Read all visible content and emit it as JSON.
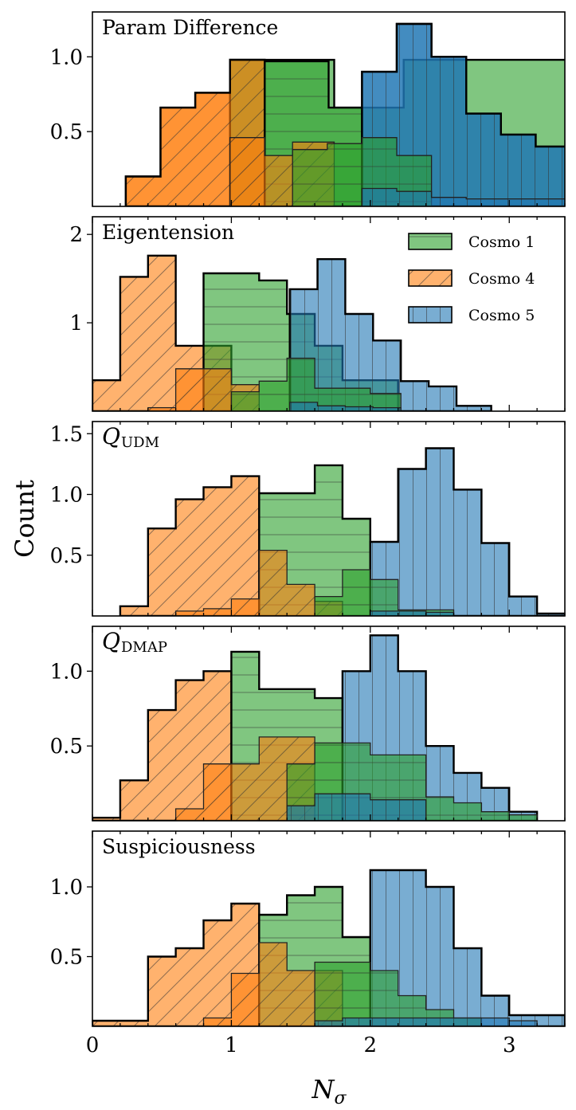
{
  "chart_data": {
    "type": "bar",
    "histtype": "step-filled",
    "xlabel": "N_σ",
    "xlabel_main": "N",
    "xlabel_sub": "σ",
    "ylabel": "Count",
    "xlim": [
      0,
      3.4
    ],
    "xticks": [
      0,
      1,
      2,
      3
    ],
    "xtick_labels": [
      "0",
      "1",
      "2",
      "3"
    ],
    "colors": {
      "Cosmo 1": "#2ca02c",
      "Cosmo 4": "#ff7f0e",
      "Cosmo 5": "#1f77b4"
    },
    "legend": {
      "placement": "top-right of panel 2",
      "entries": [
        "Cosmo 1",
        "Cosmo 4",
        "Cosmo 5"
      ]
    },
    "panels": [
      {
        "title": "Param Difference",
        "title_main": "Param Difference",
        "title_sub": "",
        "ylim": [
          0,
          1.3
        ],
        "yticks": [
          0.5,
          1.0
        ],
        "ytick_labels": [
          "0.5",
          "1.0"
        ],
        "series": [
          {
            "name": "Cosmo 4",
            "role": "outline",
            "edges": [
              0.24,
              0.49,
              0.74,
              0.99,
              1.24
            ],
            "counts": [
              0.2,
              0.66,
              0.76,
              0.98
            ]
          },
          {
            "name": "Cosmo 1",
            "role": "outline",
            "edges": [
              0.99,
              1.24,
              1.49,
              1.74,
              1.99,
              2.24,
              2.49,
              2.74,
              2.99,
              3.24,
              3.49
            ],
            "counts": [
              0.98,
              0.98,
              0.98,
              0.66,
              0.66,
              0.98,
              0.98,
              0.98,
              0.98,
              0.98
            ]
          },
          {
            "name": "Cosmo 5",
            "role": "outline",
            "edges": [
              1.94,
              2.19,
              2.44,
              2.69,
              2.94,
              3.19,
              3.44
            ],
            "counts": [
              0.9,
              1.22,
              1.0,
              0.62,
              0.48,
              0.4
            ]
          },
          {
            "name": "Cosmo 4",
            "role": "fill",
            "edges": [
              0.24,
              0.49,
              0.74,
              0.99,
              1.24
            ],
            "counts": [
              0.2,
              0.66,
              0.76,
              0.98
            ]
          },
          {
            "name": "Cosmo 1",
            "role": "fill",
            "edges": [
              1.24,
              1.7,
              1.94
            ],
            "counts": [
              0.97,
              0.66
            ]
          },
          {
            "name": "Cosmo 5",
            "role": "fill",
            "edges": [
              1.94,
              2.19,
              2.44,
              2.69,
              2.94,
              3.19,
              3.44
            ],
            "counts": [
              0.9,
              1.22,
              1.0,
              0.62,
              0.48,
              0.4
            ]
          },
          {
            "name": "Cosmo 4",
            "role": "test",
            "edges": [
              0.99,
              1.24,
              1.44,
              1.74
            ],
            "counts": [
              0.46,
              0.34,
              0.43
            ]
          },
          {
            "name": "Cosmo 1",
            "role": "test",
            "edges": [
              1.44,
              1.69,
              1.94,
              2.19,
              2.44
            ],
            "counts": [
              0.38,
              0.42,
              0.46,
              0.34
            ]
          },
          {
            "name": "Cosmo 5",
            "role": "test",
            "edges": [
              1.94,
              2.19,
              2.44,
              2.69,
              2.94,
              3.19,
              3.44
            ],
            "counts": [
              0.12,
              0.1,
              0.06,
              0.05,
              0.05,
              0.05
            ]
          }
        ]
      },
      {
        "title": "Eigentension",
        "title_main": "Eigentension",
        "title_sub": "",
        "ylim": [
          0,
          2.2
        ],
        "yticks": [
          1,
          2
        ],
        "ytick_labels": [
          "1",
          "2"
        ],
        "series": [
          {
            "name": "Cosmo 4",
            "role": "fill",
            "edges": [
              0.0,
              0.2,
              0.4,
              0.6,
              0.8,
              1.0
            ],
            "counts": [
              0.35,
              1.52,
              1.76,
              0.74,
              0.74
            ]
          },
          {
            "name": "Cosmo 1",
            "role": "fill",
            "edges": [
              0.8,
              1.2,
              1.4,
              1.6,
              1.8,
              2.2
            ],
            "counts": [
              1.56,
              1.48,
              1.1,
              0.74,
              0.35
            ]
          },
          {
            "name": "Cosmo 5",
            "role": "fill",
            "edges": [
              1.42,
              1.62,
              1.82,
              2.02,
              2.22,
              2.42,
              2.62,
              2.87
            ],
            "counts": [
              1.38,
              1.72,
              1.1,
              0.8,
              0.34,
              0.28,
              0.06
            ]
          },
          {
            "name": "Cosmo 4",
            "role": "test",
            "edges": [
              0.4,
              0.6,
              0.8,
              1.0,
              1.2
            ],
            "counts": [
              0.04,
              0.48,
              0.48,
              0.3
            ]
          },
          {
            "name": "Cosmo 1",
            "role": "test",
            "edges": [
              1.0,
              1.2,
              1.4,
              1.6,
              1.8,
              2.0,
              2.22
            ],
            "counts": [
              0.22,
              0.34,
              0.6,
              0.26,
              0.26,
              0.2
            ]
          },
          {
            "name": "Cosmo 5",
            "role": "test",
            "edges": [
              1.42,
              1.62,
              1.82,
              2.02,
              2.22
            ],
            "counts": [
              0.1,
              0.06,
              0.05,
              0.04
            ]
          }
        ]
      },
      {
        "title": "Q_UDM",
        "title_main": "Q",
        "title_sub": "UDM",
        "ylim": [
          0,
          1.6
        ],
        "yticks": [
          0.5,
          1.0,
          1.5
        ],
        "ytick_labels": [
          "0.5",
          "1.0",
          "1.5"
        ],
        "series": [
          {
            "name": "Cosmo 4",
            "role": "fill",
            "edges": [
              0.2,
              0.4,
              0.6,
              0.8,
              1.0,
              1.2
            ],
            "counts": [
              0.08,
              0.72,
              0.96,
              1.06,
              1.15
            ]
          },
          {
            "name": "Cosmo 1",
            "role": "fill",
            "edges": [
              1.2,
              1.6,
              1.8,
              2.0
            ],
            "counts": [
              1.01,
              1.24,
              0.8
            ]
          },
          {
            "name": "Cosmo 5",
            "role": "fill",
            "edges": [
              2.0,
              2.2,
              2.4,
              2.6,
              2.8,
              3.0,
              3.2,
              3.4
            ],
            "counts": [
              0.61,
              1.21,
              1.38,
              1.04,
              0.6,
              0.16,
              0.02
            ]
          },
          {
            "name": "Cosmo 4",
            "role": "test",
            "edges": [
              0.6,
              0.8,
              1.0,
              1.2,
              1.4,
              1.6,
              1.8
            ],
            "counts": [
              0.04,
              0.06,
              0.14,
              0.54,
              0.26,
              0.12
            ]
          },
          {
            "name": "Cosmo 1",
            "role": "test",
            "edges": [
              1.6,
              1.8,
              2.0,
              2.2,
              2.6
            ],
            "counts": [
              0.16,
              0.38,
              0.3,
              0.05
            ]
          },
          {
            "name": "Cosmo 5",
            "role": "test",
            "edges": [
              2.0,
              2.2,
              2.4,
              2.6
            ],
            "counts": [
              0.04,
              0.04,
              0.03
            ]
          }
        ]
      },
      {
        "title": "Q_DMAP",
        "title_main": "Q",
        "title_sub": "DMAP",
        "ylim": [
          0,
          1.3
        ],
        "yticks": [
          0.5,
          1.0
        ],
        "ytick_labels": [
          "0.5",
          "1.0"
        ],
        "series": [
          {
            "name": "Cosmo 4",
            "role": "fill",
            "edges": [
              0.0,
              0.2,
              0.4,
              0.6,
              0.8,
              1.0
            ],
            "counts": [
              0.02,
              0.27,
              0.74,
              0.94,
              1.0
            ]
          },
          {
            "name": "Cosmo 1",
            "role": "fill",
            "edges": [
              1.0,
              1.2,
              1.6,
              1.8
            ],
            "counts": [
              1.13,
              0.88,
              0.82
            ]
          },
          {
            "name": "Cosmo 5",
            "role": "fill",
            "edges": [
              1.8,
              2.0,
              2.2,
              2.4,
              2.6,
              2.8,
              3.0,
              3.2
            ],
            "counts": [
              1.0,
              1.24,
              1.0,
              0.5,
              0.32,
              0.22,
              0.06
            ]
          },
          {
            "name": "Cosmo 4",
            "role": "test",
            "edges": [
              0.6,
              0.8,
              1.2,
              1.6
            ],
            "counts": [
              0.08,
              0.38,
              0.56
            ]
          },
          {
            "name": "Cosmo 1",
            "role": "test",
            "edges": [
              1.4,
              1.6,
              2.0,
              2.4,
              2.6,
              2.8,
              3.0,
              3.2
            ],
            "counts": [
              0.38,
              0.52,
              0.44,
              0.16,
              0.12,
              0.06,
              0.04
            ]
          },
          {
            "name": "Cosmo 5",
            "role": "test",
            "edges": [
              1.4,
              1.6,
              2.0,
              2.4
            ],
            "counts": [
              0.1,
              0.18,
              0.14
            ]
          }
        ]
      },
      {
        "title": "Suspiciousness",
        "title_main": "Suspiciousness",
        "title_sub": "",
        "ylim": [
          0,
          1.4
        ],
        "yticks": [
          0.5,
          1.0
        ],
        "ytick_labels": [
          "0.5",
          "1.0"
        ],
        "series": [
          {
            "name": "Cosmo 4",
            "role": "fill",
            "edges": [
              0.0,
              0.2,
              0.4,
              0.6,
              0.8,
              1.0,
              1.2
            ],
            "counts": [
              0.04,
              0.04,
              0.5,
              0.56,
              0.76,
              0.88
            ]
          },
          {
            "name": "Cosmo 1",
            "role": "fill",
            "edges": [
              1.2,
              1.4,
              1.6,
              1.8,
              2.0
            ],
            "counts": [
              0.8,
              0.94,
              1.0,
              0.64
            ]
          },
          {
            "name": "Cosmo 5",
            "role": "fill",
            "edges": [
              2.0,
              2.4,
              2.6,
              2.8,
              3.0,
              3.4
            ],
            "counts": [
              1.12,
              1.0,
              0.56,
              0.22,
              0.08
            ]
          },
          {
            "name": "Cosmo 4",
            "role": "test",
            "edges": [
              0.8,
              1.0,
              1.2,
              1.4,
              1.6,
              1.8
            ],
            "counts": [
              0.06,
              0.38,
              0.6,
              0.4,
              0.4
            ]
          },
          {
            "name": "Cosmo 1",
            "role": "test",
            "edges": [
              1.6,
              1.8,
              2.0,
              2.2,
              2.4,
              2.6,
              2.8
            ],
            "counts": [
              0.46,
              0.46,
              0.4,
              0.22,
              0.12,
              0.06
            ]
          },
          {
            "name": "Cosmo 5",
            "role": "test",
            "edges": [
              1.6,
              1.8,
              2.0,
              2.2,
              2.4,
              2.6,
              2.8,
              3.0,
              3.2
            ],
            "counts": [
              0.04,
              0.06,
              0.06,
              0.06,
              0.06,
              0.06,
              0.06,
              0.04
            ]
          }
        ]
      }
    ]
  }
}
